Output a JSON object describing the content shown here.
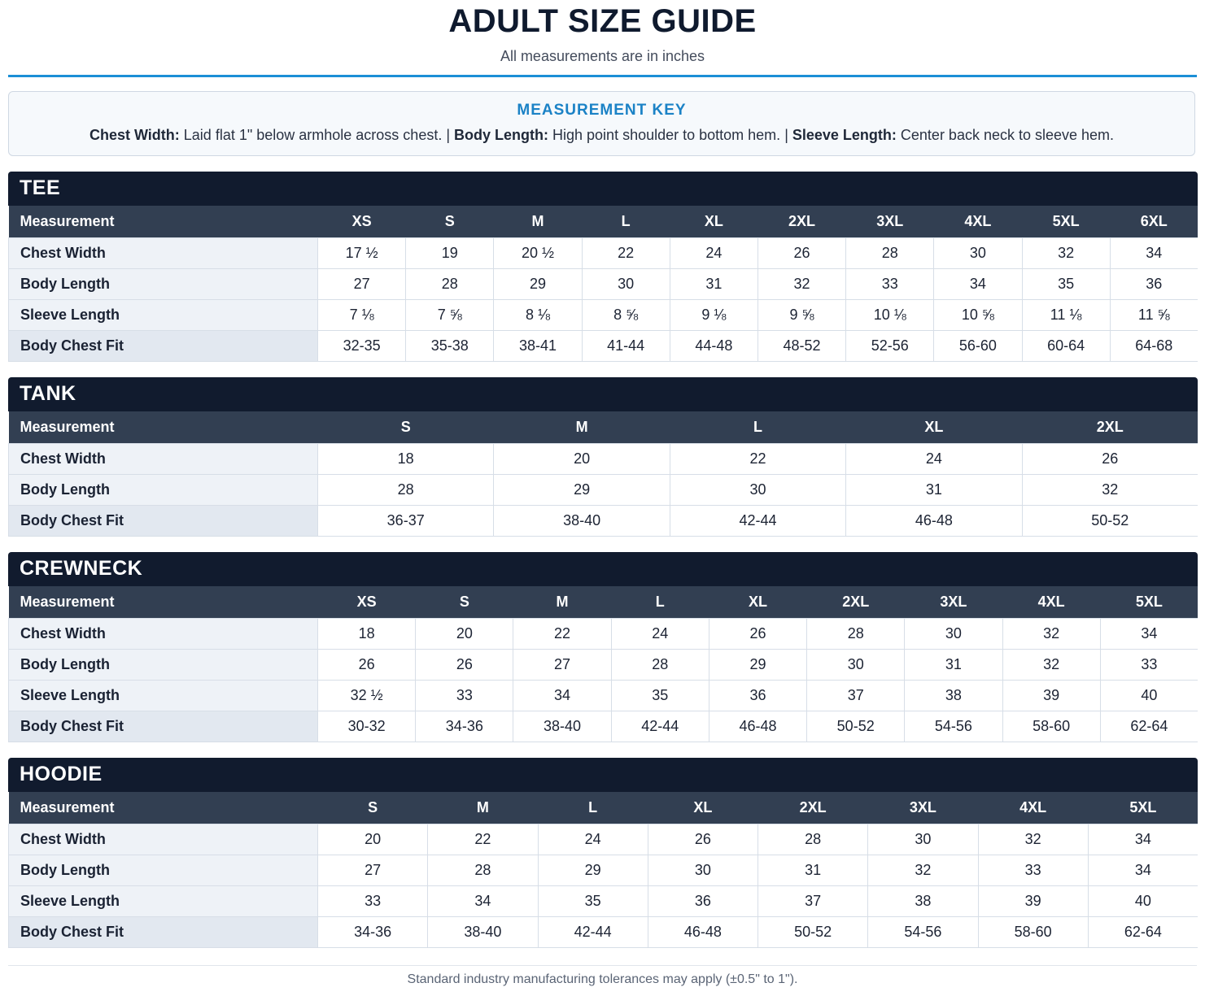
{
  "header": {
    "title": "ADULT SIZE GUIDE",
    "subtitle": "All measurements are in inches"
  },
  "key": {
    "title": "MEASUREMENT KEY",
    "items": [
      {
        "term": "Chest Width:",
        "desc": " Laid flat 1\" below armhole across chest."
      },
      {
        "term": "Body Length:",
        "desc": " High point shoulder to bottom hem."
      },
      {
        "term": "Sleeve Length:",
        "desc": " Center back neck to sleeve hem."
      }
    ],
    "separator": " | "
  },
  "tables": [
    {
      "name": "TEE",
      "header_label": "Measurement",
      "sizes": [
        "XS",
        "S",
        "M",
        "L",
        "XL",
        "2XL",
        "3XL",
        "4XL",
        "5XL",
        "6XL"
      ],
      "rows": [
        {
          "label": "Chest Width",
          "values": [
            "17 ½",
            "19",
            "20 ½",
            "22",
            "24",
            "26",
            "28",
            "30",
            "32",
            "34"
          ]
        },
        {
          "label": "Body Length",
          "values": [
            "27",
            "28",
            "29",
            "30",
            "31",
            "32",
            "33",
            "34",
            "35",
            "36"
          ]
        },
        {
          "label": "Sleeve Length",
          "values": [
            "7 ⅛",
            "7 ⅝",
            "8 ⅛",
            "8 ⅝",
            "9 ⅛",
            "9 ⅝",
            "10 ⅛",
            "10 ⅝",
            "11 ⅛",
            "11 ⅝"
          ]
        },
        {
          "label": "Body Chest Fit",
          "values": [
            "32-35",
            "35-38",
            "38-41",
            "41-44",
            "44-48",
            "48-52",
            "52-56",
            "56-60",
            "60-64",
            "64-68"
          ]
        }
      ]
    },
    {
      "name": "TANK",
      "header_label": "Measurement",
      "sizes": [
        "S",
        "M",
        "L",
        "XL",
        "2XL"
      ],
      "rows": [
        {
          "label": "Chest Width",
          "values": [
            "18",
            "20",
            "22",
            "24",
            "26"
          ]
        },
        {
          "label": "Body Length",
          "values": [
            "28",
            "29",
            "30",
            "31",
            "32"
          ]
        },
        {
          "label": "Body Chest Fit",
          "values": [
            "36-37",
            "38-40",
            "42-44",
            "46-48",
            "50-52"
          ]
        }
      ]
    },
    {
      "name": "CREWNECK",
      "header_label": "Measurement",
      "sizes": [
        "XS",
        "S",
        "M",
        "L",
        "XL",
        "2XL",
        "3XL",
        "4XL",
        "5XL"
      ],
      "rows": [
        {
          "label": "Chest Width",
          "values": [
            "18",
            "20",
            "22",
            "24",
            "26",
            "28",
            "30",
            "32",
            "34"
          ]
        },
        {
          "label": "Body Length",
          "values": [
            "26",
            "26",
            "27",
            "28",
            "29",
            "30",
            "31",
            "32",
            "33"
          ]
        },
        {
          "label": "Sleeve Length",
          "values": [
            "32 ½",
            "33",
            "34",
            "35",
            "36",
            "37",
            "38",
            "39",
            "40"
          ]
        },
        {
          "label": "Body Chest Fit",
          "values": [
            "30-32",
            "34-36",
            "38-40",
            "42-44",
            "46-48",
            "50-52",
            "54-56",
            "58-60",
            "62-64"
          ]
        }
      ]
    },
    {
      "name": "HOODIE",
      "header_label": "Measurement",
      "sizes": [
        "S",
        "M",
        "L",
        "XL",
        "2XL",
        "3XL",
        "4XL",
        "5XL"
      ],
      "rows": [
        {
          "label": "Chest Width",
          "values": [
            "20",
            "22",
            "24",
            "26",
            "28",
            "30",
            "32",
            "34"
          ]
        },
        {
          "label": "Body Length",
          "values": [
            "27",
            "28",
            "29",
            "30",
            "31",
            "32",
            "33",
            "34"
          ]
        },
        {
          "label": "Sleeve Length",
          "values": [
            "33",
            "34",
            "35",
            "36",
            "37",
            "38",
            "39",
            "40"
          ]
        },
        {
          "label": "Body Chest Fit",
          "values": [
            "34-36",
            "38-40",
            "42-44",
            "46-48",
            "50-52",
            "54-56",
            "58-60",
            "62-64"
          ]
        }
      ]
    }
  ],
  "footer": {
    "note": "Standard industry manufacturing tolerances may apply (±0.5\" to 1\")."
  },
  "colors": {
    "accent": "#1b8fd6",
    "section_header": "#111b2e",
    "table_header": "#323f52"
  }
}
